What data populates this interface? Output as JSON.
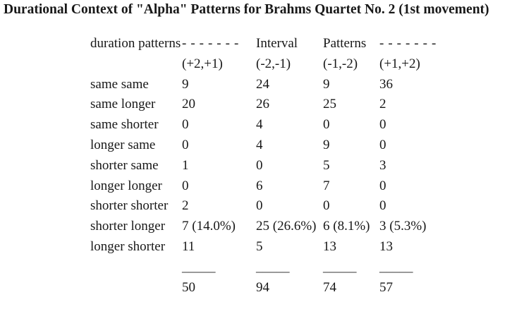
{
  "title": "Durational Context of \"Alpha\" Patterns for Brahms Quartet No. 2 (1st movement)",
  "table": {
    "header_line1": {
      "label": "duration patterns",
      "c2": "-------",
      "c3": "Interval",
      "c4": "Patterns",
      "c5": "-------"
    },
    "header_line2": {
      "c2": "(+2,+1)",
      "c3": "(-2,-1)",
      "c4": "(-1,-2)",
      "c5": "(+1,+2)"
    },
    "rows": [
      {
        "label": "same same",
        "c2": "9",
        "c3": "24",
        "c4": "9",
        "c5": "36"
      },
      {
        "label": "same longer",
        "c2": "20",
        "c3": "26",
        "c4": "25",
        "c5": "2"
      },
      {
        "label": "same shorter",
        "c2": "0",
        "c3": "4",
        "c4": "0",
        "c5": "0"
      },
      {
        "label": "longer same",
        "c2": "0",
        "c3": "4",
        "c4": "9",
        "c5": "0"
      },
      {
        "label": "shorter same",
        "c2": "1",
        "c3": "0",
        "c4": "5",
        "c5": "3"
      },
      {
        "label": "longer longer",
        "c2": "0",
        "c3": "6",
        "c4": "7",
        "c5": "0"
      },
      {
        "label": "shorter shorter",
        "c2": "2",
        "c3": "0",
        "c4": "0",
        "c5": "0"
      },
      {
        "label": "shorter longer",
        "c2": "7 (14.0%)",
        "c3": "25 (26.6%)",
        "c4": "6 (8.1%)",
        "c5": "3 (5.3%)"
      },
      {
        "label": "longer shorter",
        "c2": "11",
        "c3": "5",
        "c4": "13",
        "c5": "13"
      }
    ],
    "rule_row": {
      "c2": "_____",
      "c3": "_____",
      "c4": "_____",
      "c5": "_____"
    },
    "totals_row": {
      "c2": "50",
      "c3": "94",
      "c4": "74",
      "c5": "57"
    }
  }
}
